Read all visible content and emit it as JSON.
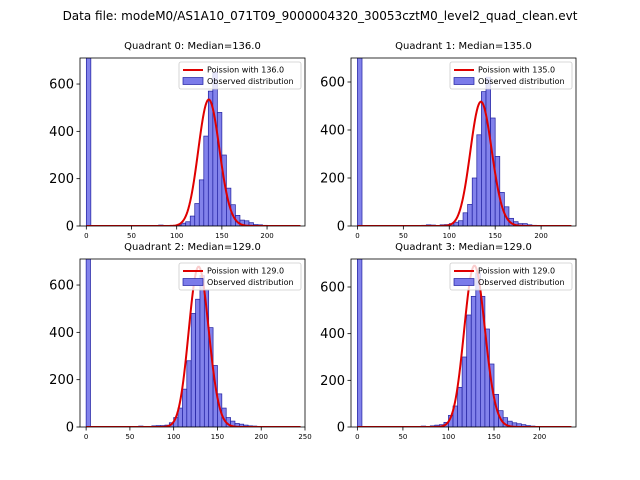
{
  "figure": {
    "suptitle": "Data file: modeM0/AS1A10_071T09_9000004320_30053cztM0_level2_quad_clean.evt"
  },
  "colors": {
    "bar_fill": "#7b7bea",
    "bar_edge": "#2020a0",
    "curve": "#e00000",
    "axis": "#000000"
  },
  "chart_data": [
    {
      "type": "bar",
      "title": "Quadrant 0: Median=136.0",
      "median": 136.0,
      "xlim": [
        -7,
        242
      ],
      "ylim": [
        0,
        710
      ],
      "xticks": [
        0,
        50,
        100,
        150,
        200
      ],
      "yticks": [
        0,
        200,
        400,
        600
      ],
      "bin_width": 5,
      "legend": {
        "position": "upper right",
        "entries": [
          "Poission with 136.0",
          "Observed distribution"
        ]
      },
      "bins": [
        [
          0,
          710
        ],
        [
          80,
          4
        ],
        [
          95,
          2
        ],
        [
          100,
          4
        ],
        [
          105,
          12
        ],
        [
          110,
          18
        ],
        [
          115,
          42
        ],
        [
          120,
          95
        ],
        [
          125,
          195
        ],
        [
          130,
          380
        ],
        [
          135,
          570
        ],
        [
          140,
          650
        ],
        [
          145,
          480
        ],
        [
          150,
          300
        ],
        [
          155,
          160
        ],
        [
          160,
          90
        ],
        [
          165,
          45
        ],
        [
          170,
          25
        ],
        [
          175,
          22
        ],
        [
          180,
          14
        ],
        [
          185,
          6
        ],
        [
          190,
          5
        ],
        [
          195,
          3
        ],
        [
          200,
          1
        ]
      ]
    },
    {
      "type": "bar",
      "title": "Quadrant 1: Median=135.0",
      "median": 135.0,
      "xlim": [
        -7,
        238
      ],
      "ylim": [
        0,
        700
      ],
      "xticks": [
        0,
        50,
        100,
        150,
        200
      ],
      "yticks": [
        0,
        200,
        400,
        600
      ],
      "bin_width": 5,
      "legend": {
        "position": "upper right",
        "entries": [
          "Poission with 135.0",
          "Observed distribution"
        ]
      },
      "bins": [
        [
          0,
          700
        ],
        [
          70,
          3
        ],
        [
          75,
          5
        ],
        [
          80,
          4
        ],
        [
          85,
          2
        ],
        [
          90,
          5
        ],
        [
          95,
          6
        ],
        [
          100,
          10
        ],
        [
          105,
          16
        ],
        [
          110,
          22
        ],
        [
          115,
          55
        ],
        [
          120,
          90
        ],
        [
          125,
          200
        ],
        [
          130,
          380
        ],
        [
          135,
          560
        ],
        [
          140,
          620
        ],
        [
          145,
          450
        ],
        [
          150,
          290
        ],
        [
          155,
          140
        ],
        [
          160,
          80
        ],
        [
          165,
          32
        ],
        [
          170,
          18
        ],
        [
          175,
          10
        ],
        [
          180,
          10
        ],
        [
          185,
          5
        ],
        [
          190,
          3
        ],
        [
          195,
          1
        ]
      ]
    },
    {
      "type": "bar",
      "title": "Quadrant 2: Median=129.0",
      "median": 129.0,
      "xlim": [
        -7,
        250
      ],
      "ylim": [
        0,
        710
      ],
      "xticks": [
        0,
        50,
        100,
        150,
        200,
        250
      ],
      "yticks": [
        0,
        200,
        400,
        600
      ],
      "bin_width": 5,
      "legend": {
        "position": "upper right",
        "entries": [
          "Poission with 129.0",
          "Observed distribution"
        ]
      },
      "bins": [
        [
          0,
          710
        ],
        [
          60,
          4
        ],
        [
          75,
          5
        ],
        [
          80,
          6
        ],
        [
          85,
          6
        ],
        [
          90,
          8
        ],
        [
          95,
          18
        ],
        [
          100,
          40
        ],
        [
          105,
          80
        ],
        [
          110,
          160
        ],
        [
          115,
          280
        ],
        [
          120,
          480
        ],
        [
          125,
          540
        ],
        [
          130,
          640
        ],
        [
          135,
          580
        ],
        [
          140,
          420
        ],
        [
          145,
          260
        ],
        [
          150,
          140
        ],
        [
          155,
          80
        ],
        [
          160,
          40
        ],
        [
          165,
          25
        ],
        [
          170,
          15
        ],
        [
          175,
          12
        ],
        [
          180,
          8
        ],
        [
          185,
          5
        ],
        [
          190,
          4
        ],
        [
          195,
          2
        ],
        [
          200,
          1
        ]
      ]
    },
    {
      "type": "bar",
      "title": "Quadrant 3: Median=129.0",
      "median": 129.0,
      "xlim": [
        -7,
        240
      ],
      "ylim": [
        0,
        720
      ],
      "xticks": [
        0,
        50,
        100,
        150,
        200
      ],
      "yticks": [
        0,
        200,
        400,
        600
      ],
      "bin_width": 5,
      "legend": {
        "position": "upper right",
        "entries": [
          "Poission with 129.0",
          "Observed distribution"
        ]
      },
      "bins": [
        [
          0,
          720
        ],
        [
          70,
          4
        ],
        [
          80,
          5
        ],
        [
          85,
          8
        ],
        [
          90,
          10
        ],
        [
          95,
          20
        ],
        [
          100,
          50
        ],
        [
          105,
          90
        ],
        [
          110,
          170
        ],
        [
          115,
          300
        ],
        [
          120,
          480
        ],
        [
          125,
          560
        ],
        [
          130,
          660
        ],
        [
          135,
          560
        ],
        [
          140,
          420
        ],
        [
          145,
          270
        ],
        [
          150,
          140
        ],
        [
          155,
          70
        ],
        [
          160,
          40
        ],
        [
          165,
          25
        ],
        [
          170,
          18
        ],
        [
          175,
          14
        ],
        [
          180,
          10
        ],
        [
          185,
          6
        ],
        [
          190,
          4
        ],
        [
          195,
          2
        ]
      ]
    }
  ]
}
